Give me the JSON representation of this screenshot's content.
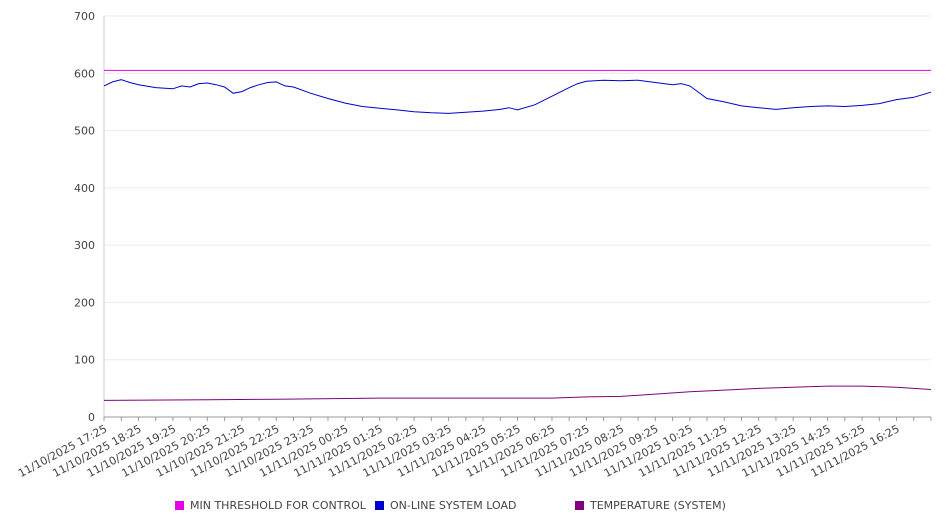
{
  "chart_data": {
    "type": "line",
    "title": "",
    "xlabel": "",
    "ylabel": "",
    "ylim": [
      0,
      700
    ],
    "yticks": [
      0,
      100,
      200,
      300,
      400,
      500,
      600,
      700
    ],
    "x_start": "11/10/2025 17:25",
    "x_end": "11/11/2025 17:25",
    "x_tick_labels": [
      "11/10/2025 17:25",
      "11/10/2025 18:25",
      "11/10/2025 19:25",
      "11/10/2025 20:25",
      "11/10/2025 21:25",
      "11/10/2025 22:25",
      "11/10/2025 23:25",
      "11/11/2025 00:25",
      "11/11/2025 01:25",
      "11/11/2025 02:25",
      "11/11/2025 03:25",
      "11/11/2025 04:25",
      "11/11/2025 05:25",
      "11/11/2025 06:25",
      "11/11/2025 07:25",
      "11/11/2025 08:25",
      "11/11/2025 09:25",
      "11/11/2025 10:25",
      "11/11/2025 11:25",
      "11/11/2025 12:25",
      "11/11/2025 13:25",
      "11/11/2025 14:25",
      "11/11/2025 15:25",
      "11/11/2025 16:25"
    ],
    "grid": true,
    "legend_position": "bottom",
    "series": [
      {
        "name": "MIN THRESHOLD FOR CONTROL",
        "color": "#e600e6",
        "x": [
          "11/10/2025 17:25",
          "11/11/2025 17:25"
        ],
        "values": [
          605,
          605
        ]
      },
      {
        "name": "ON-LINE SYSTEM LOAD",
        "color": "#0000cc",
        "x": [
          "11/10/2025 17:25",
          "11/10/2025 17:40",
          "11/10/2025 17:55",
          "11/10/2025 18:10",
          "11/10/2025 18:25",
          "11/10/2025 18:55",
          "11/10/2025 19:25",
          "11/10/2025 19:40",
          "11/10/2025 19:55",
          "11/10/2025 20:10",
          "11/10/2025 20:25",
          "11/10/2025 20:40",
          "11/10/2025 20:55",
          "11/10/2025 21:10",
          "11/10/2025 21:25",
          "11/10/2025 21:40",
          "11/10/2025 21:55",
          "11/10/2025 22:10",
          "11/10/2025 22:25",
          "11/10/2025 22:40",
          "11/10/2025 22:55",
          "11/10/2025 23:25",
          "11/10/2025 23:55",
          "11/11/2025 00:25",
          "11/11/2025 00:55",
          "11/11/2025 01:25",
          "11/11/2025 01:55",
          "11/11/2025 02:25",
          "11/11/2025 02:55",
          "11/11/2025 03:25",
          "11/11/2025 03:55",
          "11/11/2025 04:25",
          "11/11/2025 04:55",
          "11/11/2025 05:10",
          "11/11/2025 05:25",
          "11/11/2025 05:55",
          "11/11/2025 06:25",
          "11/11/2025 06:55",
          "11/11/2025 07:10",
          "11/11/2025 07:25",
          "11/11/2025 07:55",
          "11/11/2025 08:25",
          "11/11/2025 08:55",
          "11/11/2025 09:25",
          "11/11/2025 09:55",
          "11/11/2025 10:10",
          "11/11/2025 10:25",
          "11/11/2025 10:55",
          "11/11/2025 11:25",
          "11/11/2025 11:55",
          "11/11/2025 12:25",
          "11/11/2025 12:55",
          "11/11/2025 13:25",
          "11/11/2025 13:55",
          "11/11/2025 14:25",
          "11/11/2025 14:55",
          "11/11/2025 15:25",
          "11/11/2025 15:55",
          "11/11/2025 16:25",
          "11/11/2025 16:55",
          "11/11/2025 17:25"
        ],
        "values": [
          578,
          585,
          589,
          584,
          580,
          575,
          573,
          578,
          576,
          582,
          583,
          580,
          576,
          565,
          568,
          575,
          580,
          584,
          585,
          578,
          576,
          565,
          556,
          548,
          542,
          539,
          536,
          533,
          531,
          530,
          532,
          534,
          537,
          540,
          536,
          545,
          560,
          575,
          582,
          586,
          588,
          587,
          588,
          584,
          580,
          582,
          578,
          556,
          550,
          543,
          540,
          537,
          540,
          542,
          543,
          542,
          544,
          547,
          554,
          558,
          567
        ]
      },
      {
        "name": "TEMPERATURE (SYSTEM)",
        "color": "#800080",
        "x": [
          "11/10/2025 17:25",
          "11/10/2025 20:25",
          "11/10/2025 22:25",
          "11/11/2025 01:25",
          "11/11/2025 04:25",
          "11/11/2025 06:25",
          "11/11/2025 07:25",
          "11/11/2025 08:25",
          "11/11/2025 09:25",
          "11/11/2025 10:25",
          "11/11/2025 11:25",
          "11/11/2025 12:25",
          "11/11/2025 13:25",
          "11/11/2025 14:25",
          "11/11/2025 15:25",
          "11/11/2025 16:25",
          "11/11/2025 17:25"
        ],
        "values": [
          29,
          30,
          31,
          33,
          33,
          33,
          35,
          36,
          40,
          44,
          47,
          50,
          52,
          54,
          54,
          52,
          48
        ]
      }
    ]
  }
}
